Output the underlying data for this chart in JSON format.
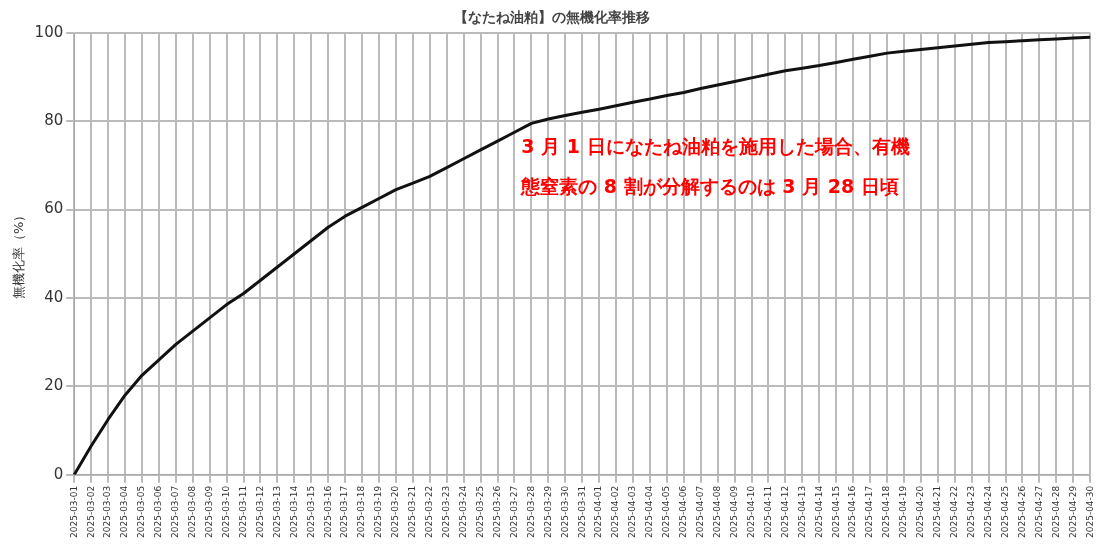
{
  "chart_data": {
    "type": "line",
    "title": "【なたね油粕】の無機化率推移",
    "ylabel": "無機化率（%）",
    "categories": [
      "2025-03-01",
      "2025-03-02",
      "2025-03-03",
      "2025-03-04",
      "2025-03-05",
      "2025-03-06",
      "2025-03-07",
      "2025-03-08",
      "2025-03-09",
      "2025-03-10",
      "2025-03-11",
      "2025-03-12",
      "2025-03-13",
      "2025-03-14",
      "2025-03-15",
      "2025-03-16",
      "2025-03-17",
      "2025-03-18",
      "2025-03-19",
      "2025-03-20",
      "2025-03-21",
      "2025-03-22",
      "2025-03-23",
      "2025-03-24",
      "2025-03-25",
      "2025-03-26",
      "2025-03-27",
      "2025-03-28",
      "2025-03-29",
      "2025-03-30",
      "2025-03-31",
      "2025-04-01",
      "2025-04-02",
      "2025-04-03",
      "2025-04-04",
      "2025-04-05",
      "2025-04-06",
      "2025-04-07",
      "2025-04-08",
      "2025-04-09",
      "2025-04-10",
      "2025-04-11",
      "2025-04-12",
      "2025-04-13",
      "2025-04-14",
      "2025-04-15",
      "2025-04-16",
      "2025-04-17",
      "2025-04-18",
      "2025-04-19",
      "2025-04-20",
      "2025-04-21",
      "2025-04-22",
      "2025-04-23",
      "2025-04-24",
      "2025-04-25",
      "2025-04-26",
      "2025-04-27",
      "2025-04-28",
      "2025-04-29",
      "2025-04-30"
    ],
    "series": [
      {
        "color": "#111111",
        "values": [
          0,
          6.5,
          12.5,
          18,
          22.5,
          26,
          29.5,
          32.5,
          35.5,
          38.5,
          41,
          44,
          47,
          50,
          53,
          56,
          58.5,
          60.5,
          62.5,
          64.5,
          66,
          67.5,
          69.5,
          71.5,
          73.5,
          75.5,
          77.5,
          79.5,
          80.5,
          81.3,
          82,
          82.7,
          83.5,
          84.3,
          85,
          85.8,
          86.5,
          87.4,
          88.2,
          89,
          89.8,
          90.6,
          91.4,
          92,
          92.6,
          93.3,
          94,
          94.7,
          95.4,
          95.8,
          96.2,
          96.6,
          97,
          97.4,
          97.8,
          98,
          98.2,
          98.4,
          98.6,
          98.8,
          99
        ]
      }
    ],
    "ylim": [
      0,
      100
    ],
    "yticks": [
      0,
      20,
      40,
      60,
      80,
      100
    ],
    "grid": true,
    "marker": "none",
    "line_style": "solid",
    "annotations": [
      "3 月 1 日になたね油粕を施用した場合、有機",
      "態窒素の 8 割が分解するのは 3 月 28 日頃"
    ]
  }
}
